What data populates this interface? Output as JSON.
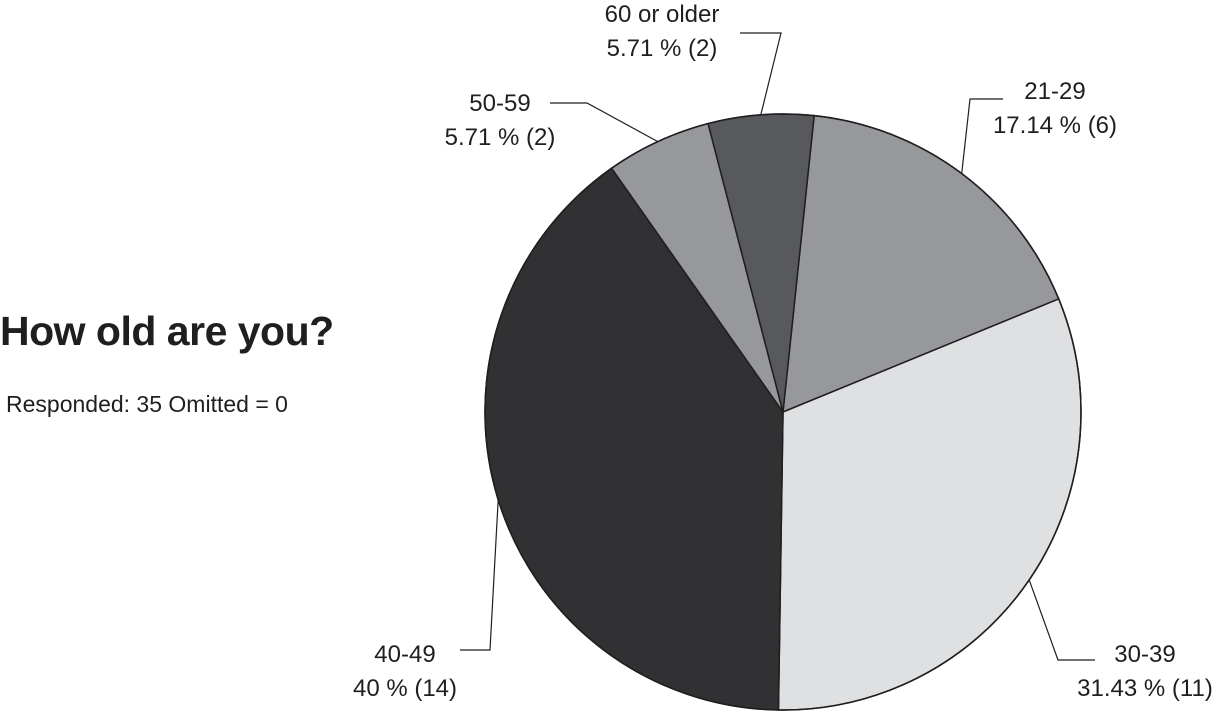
{
  "chart_data": {
    "type": "pie",
    "title": "How old are you?",
    "subtitle": "Responded: 35 Omitted = 0",
    "slices": [
      {
        "label": "21-29",
        "percent": 17.14,
        "count": 6,
        "percent_label": "17.14 % (6)",
        "color": "#97989b"
      },
      {
        "label": "30-39",
        "percent": 31.43,
        "count": 11,
        "percent_label": "31.43 % (11)",
        "color": "#dfe0e2"
      },
      {
        "label": "40-49",
        "percent": 40,
        "count": 14,
        "percent_label": "40 % (14)",
        "color": "#313133"
      },
      {
        "label": "50-59",
        "percent": 5.71,
        "count": 2,
        "percent_label": "5.71 % (2)",
        "color": "#97989b"
      },
      {
        "label": "60 or older",
        "percent": 5.71,
        "count": 2,
        "percent_label": "5.71 % (2)",
        "color": "#58595c"
      }
    ]
  }
}
